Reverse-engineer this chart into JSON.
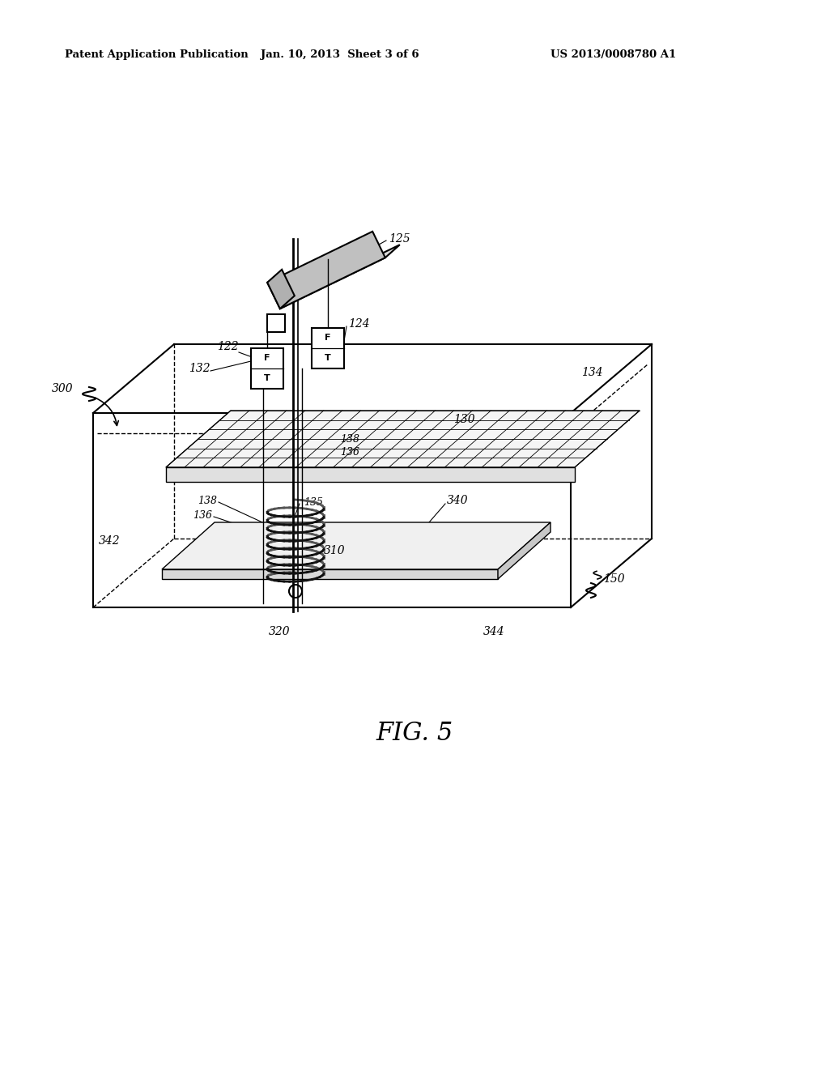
{
  "header_left": "Patent Application Publication",
  "header_center": "Jan. 10, 2013  Sheet 3 of 6",
  "header_right": "US 2013/0008780 A1",
  "fig_label": "FIG. 5",
  "background_color": "#ffffff",
  "line_color": "#000000"
}
